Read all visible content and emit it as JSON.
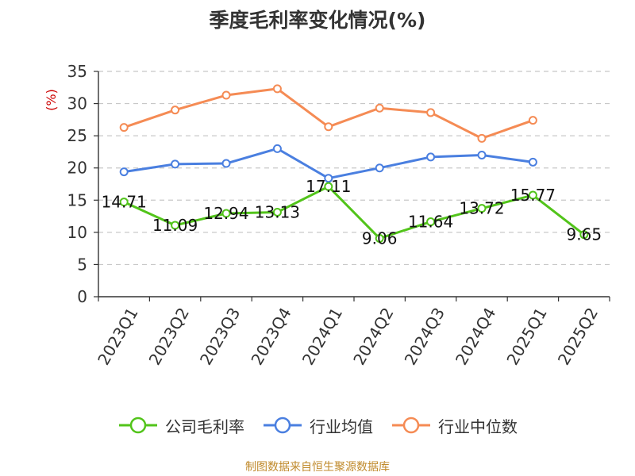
{
  "title": "季度毛利率变化情况(%)",
  "source": "制图数据来自恒生聚源数据库",
  "colors": {
    "company": "#52c41a",
    "industry_avg": "#4a7fe0",
    "industry_median": "#f58b54",
    "ylabel": "#cc0000",
    "source": "#c08a2c"
  },
  "chart_data": {
    "type": "line",
    "title": "季度毛利率变化情况(%)",
    "ylabel": "(%)",
    "xlabel": "",
    "ylim": [
      0,
      35
    ],
    "yticks": [
      "0",
      "5",
      "10",
      "15",
      "20",
      "25",
      "30",
      "35"
    ],
    "grid": true,
    "legend_position": "bottom",
    "categories": [
      "2023Q1",
      "2023Q2",
      "2023Q3",
      "2023Q4",
      "2024Q1",
      "2024Q2",
      "2024Q3",
      "2024Q4",
      "2025Q1",
      "2025Q2"
    ],
    "series": [
      {
        "name": "公司毛利率",
        "values": [
          14.71,
          11.09,
          12.94,
          13.13,
          17.11,
          9.06,
          11.64,
          13.72,
          15.77,
          9.65
        ],
        "labels": [
          "14.71",
          "11.09",
          "12.94",
          "13.13",
          "17.11",
          "9.06",
          "11.64",
          "13.72",
          "15.77",
          "9.65"
        ]
      },
      {
        "name": "行业均值",
        "values": [
          19.4,
          20.6,
          20.7,
          23.0,
          18.4,
          20.0,
          21.7,
          22.0,
          20.9,
          null
        ]
      },
      {
        "name": "行业中位数",
        "values": [
          26.3,
          29.0,
          31.3,
          32.3,
          26.4,
          29.3,
          28.6,
          24.6,
          27.4,
          null
        ]
      }
    ]
  }
}
